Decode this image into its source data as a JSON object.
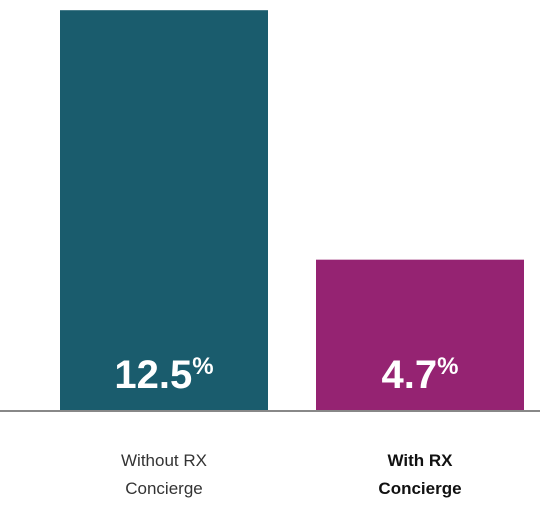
{
  "chart_data": {
    "type": "bar",
    "categories": [
      "Without RX Concierge",
      "With RX Concierge"
    ],
    "values": [
      12.5,
      4.7
    ],
    "value_labels": [
      "12.5%",
      "4.7%"
    ],
    "colors": [
      "#1a5c6d",
      "#952372"
    ],
    "emphasis": [
      false,
      true
    ],
    "ylim": [
      0,
      12.6
    ]
  }
}
